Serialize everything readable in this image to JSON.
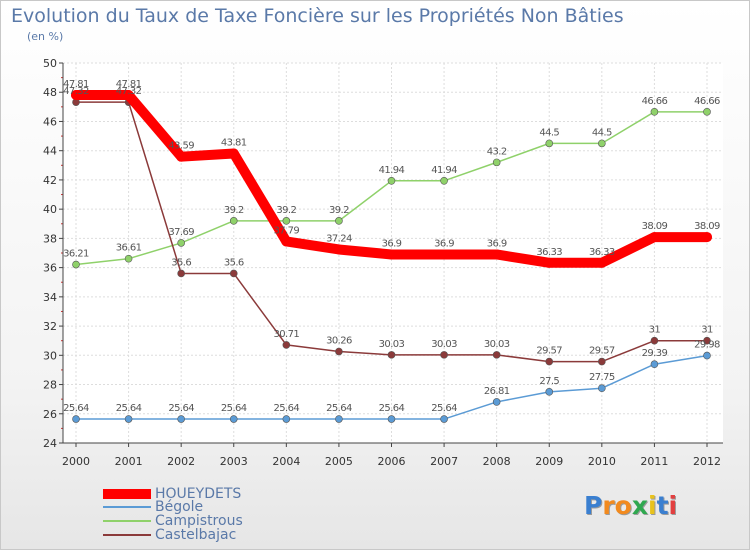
{
  "title": "Evolution du Taux de Taxe Foncière sur les Propriétés Non Bâties",
  "unit": "(en %)",
  "logo": {
    "letters": [
      "P",
      "r",
      "o",
      "x",
      "i",
      "t",
      "i"
    ],
    "colors": [
      "#3a7fd0",
      "#f28a1e",
      "#f28a1e",
      "#2fa84f",
      "#e8c21c",
      "#3a7fd0",
      "#e23f3f"
    ]
  },
  "chart_data": {
    "type": "line",
    "title": "Evolution du Taux de Taxe Foncière sur les Propriétés Non Bâties",
    "ylabel": "(en %)",
    "xlabel": "",
    "x": [
      "2000",
      "2001",
      "2002",
      "2003",
      "2004",
      "2005",
      "2006",
      "2007",
      "2008",
      "2009",
      "2010",
      "2011",
      "2012"
    ],
    "ylim": [
      24,
      50
    ],
    "yticks": [
      "24",
      "26",
      "28",
      "30",
      "32",
      "34",
      "36",
      "38",
      "40",
      "42",
      "44",
      "46",
      "48",
      "50"
    ],
    "grid": true,
    "legend_position": "bottom-left",
    "series": [
      {
        "name": "HOUEYDETS",
        "color": "#ff0000",
        "values": [
          47.81,
          47.81,
          43.59,
          43.81,
          37.79,
          37.24,
          36.9,
          36.9,
          36.9,
          36.33,
          36.33,
          38.09,
          38.09
        ],
        "labels": [
          "47.81",
          "47.81",
          "43.59",
          "43.81",
          "37.79",
          "37.24",
          "36.9",
          "36.9",
          "36.9",
          "36.33",
          "36.33",
          "38.09",
          "38.09"
        ]
      },
      {
        "name": "Bégole",
        "color": "#5b9bd5",
        "values": [
          25.64,
          25.64,
          25.64,
          25.64,
          25.64,
          25.64,
          25.64,
          25.64,
          26.81,
          27.5,
          27.75,
          29.39,
          29.98
        ],
        "labels": [
          "25.64",
          "25.64",
          "25.64",
          "25.64",
          "25.64",
          "25.64",
          "25.64",
          "25.64",
          "26.81",
          "27.5",
          "27.75",
          "29.39",
          "29.98"
        ]
      },
      {
        "name": "Campistrous",
        "color": "#8fd16a",
        "values": [
          36.21,
          36.61,
          37.69,
          39.2,
          39.2,
          39.2,
          41.94,
          41.94,
          43.2,
          44.5,
          44.5,
          46.66,
          46.66
        ],
        "labels": [
          "36.21",
          "36.61",
          "37.69",
          "39.2",
          "39.2",
          "39.2",
          "41.94",
          "41.94",
          "43.2",
          "44.5",
          "44.5",
          "46.66",
          "46.66"
        ]
      },
      {
        "name": "Castelbajac",
        "color": "#8b3a3a",
        "values": [
          47.32,
          47.32,
          35.6,
          35.6,
          30.71,
          30.26,
          30.03,
          30.03,
          30.03,
          29.57,
          29.57,
          31,
          31
        ],
        "labels": [
          "47.32",
          "47.32",
          "35.6",
          "35.6",
          "30.71",
          "30.26",
          "30.03",
          "30.03",
          "30.03",
          "29.57",
          "29.57",
          "31",
          "31"
        ]
      }
    ]
  }
}
